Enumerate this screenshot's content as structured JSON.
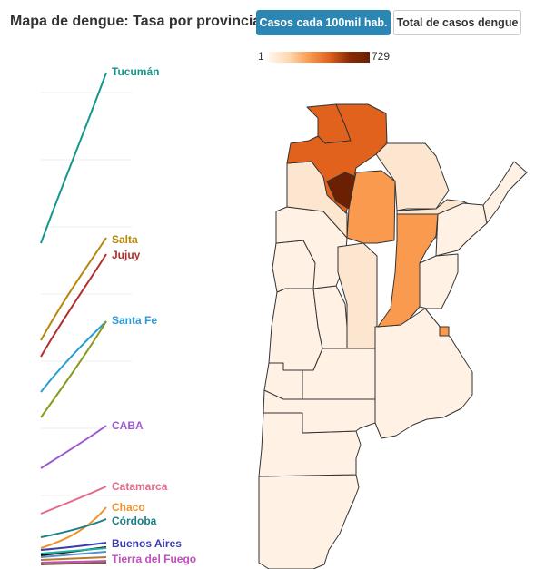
{
  "header": {
    "title": "Mapa de dengue: Tasa por provincia",
    "btn_rate": "Casos cada 100mil hab.",
    "btn_total": "Total de casos dengue"
  },
  "legend": {
    "min": "1",
    "max": "729",
    "colors": [
      "#fff6ec",
      "#fdd9b0",
      "#f99a4f",
      "#e0621c",
      "#6b1f03"
    ]
  },
  "line_chart": {
    "series": [
      {
        "name": "Tucumán",
        "color": "#14968c"
      },
      {
        "name": "Salta",
        "color": "#b8860b"
      },
      {
        "name": "Jujuy",
        "color": "#b22e2e"
      },
      {
        "name": "Santa Fe",
        "color": "#2b9bd6"
      },
      {
        "name": "CABA",
        "color": "#9b59d0"
      },
      {
        "name": "Catamarca",
        "color": "#e56a8a"
      },
      {
        "name": "Chaco",
        "color": "#f0922b"
      },
      {
        "name": "Córdoba",
        "color": "#1a7f86"
      },
      {
        "name": "Buenos Aires",
        "color": "#3a3db0"
      },
      {
        "name": "Tierra del Fuego",
        "color": "#c24fbf"
      }
    ]
  },
  "map": {
    "provinces": [
      {
        "name": "Jujuy",
        "fill": "#e0621c"
      },
      {
        "name": "Salta",
        "fill": "#e0621c"
      },
      {
        "name": "Tucumán",
        "fill": "#6b1f03"
      },
      {
        "name": "Catamarca",
        "fill": "#fde6cf"
      },
      {
        "name": "Santiago del Estero",
        "fill": "#f99a4f"
      },
      {
        "name": "Santa Fe",
        "fill": "#f99a4f"
      },
      {
        "name": "Corrientes",
        "fill": "#f99a4f"
      },
      {
        "name": "Chaco",
        "fill": "#fde6cf"
      },
      {
        "name": "Formosa",
        "fill": "#fde6cf"
      },
      {
        "name": "Misiones",
        "fill": "#fff1e4"
      },
      {
        "name": "Córdoba",
        "fill": "#fde6cf"
      },
      {
        "name": "Entre Ríos",
        "fill": "#fff1e4"
      },
      {
        "name": "La Rioja",
        "fill": "#fff1e4"
      },
      {
        "name": "San Juan",
        "fill": "#fff1e4"
      },
      {
        "name": "Mendoza",
        "fill": "#fff1e4"
      },
      {
        "name": "San Luis",
        "fill": "#fff1e4"
      },
      {
        "name": "Buenos Aires",
        "fill": "#fff1e4"
      },
      {
        "name": "La Pampa",
        "fill": "#fff1e4"
      },
      {
        "name": "Neuquén",
        "fill": "#fff1e4"
      },
      {
        "name": "Río Negro",
        "fill": "#fff1e4"
      },
      {
        "name": "Chubut",
        "fill": "#fff1e4"
      },
      {
        "name": "Santa Cruz",
        "fill": "#fff1e4"
      },
      {
        "name": "CABA",
        "fill": "#f99a4f"
      }
    ]
  }
}
